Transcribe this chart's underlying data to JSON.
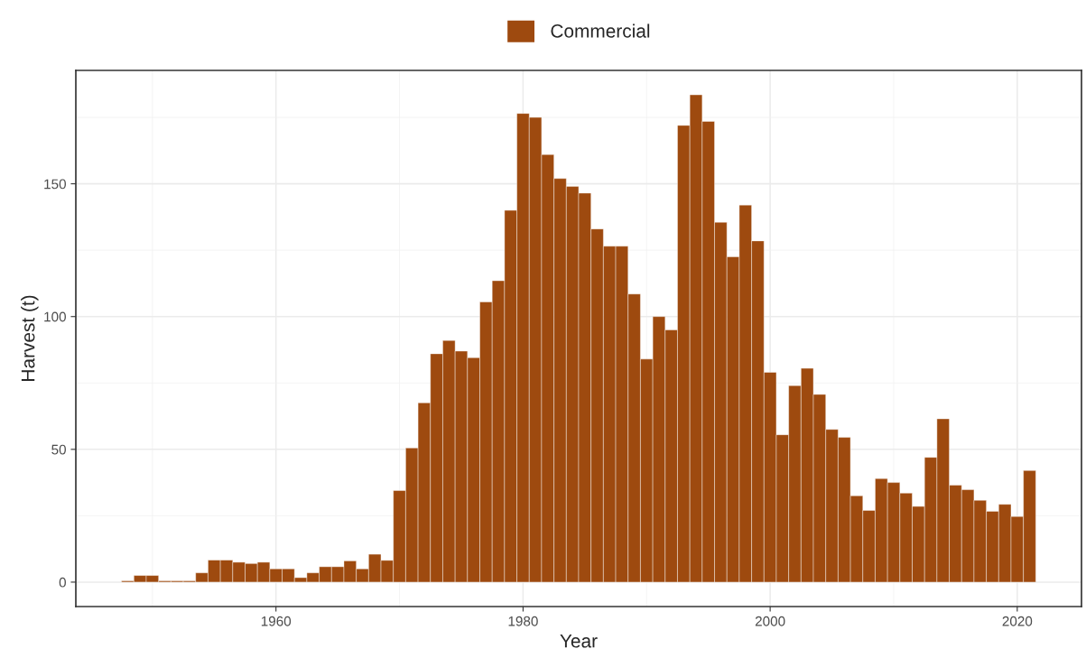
{
  "chart_data": {
    "type": "bar",
    "xlabel": "Year",
    "ylabel": "Harvest (t)",
    "x": [
      1948,
      1949,
      1950,
      1951,
      1952,
      1953,
      1954,
      1955,
      1956,
      1957,
      1958,
      1959,
      1960,
      1961,
      1962,
      1963,
      1964,
      1965,
      1966,
      1967,
      1968,
      1969,
      1970,
      1971,
      1972,
      1973,
      1974,
      1975,
      1976,
      1977,
      1978,
      1979,
      1980,
      1981,
      1982,
      1983,
      1984,
      1985,
      1986,
      1987,
      1988,
      1989,
      1990,
      1991,
      1992,
      1993,
      1994,
      1995,
      1996,
      1997,
      1998,
      1999,
      2000,
      2001,
      2002,
      2003,
      2004,
      2005,
      2006,
      2007,
      2008,
      2009,
      2010,
      2011,
      2012,
      2013,
      2014,
      2015,
      2016,
      2017,
      2018,
      2019,
      2020,
      2021
    ],
    "series": [
      {
        "name": "Commercial",
        "color": "#9e4a0f",
        "values": [
          0.5,
          2.5,
          2.5,
          0.5,
          0.5,
          0.5,
          3.5,
          8.3,
          8.3,
          7.5,
          7,
          7.5,
          5,
          5,
          1.7,
          3.5,
          5.8,
          5.8,
          8,
          5,
          10.5,
          8.2,
          34.5,
          50.5,
          67.5,
          86,
          91,
          87,
          84.5,
          105.5,
          113.5,
          140,
          176.5,
          175,
          161,
          152,
          149,
          146.5,
          133,
          126.5,
          126.5,
          108.5,
          84,
          100,
          95,
          172,
          183.5,
          173.5,
          135.5,
          122.5,
          142,
          128.5,
          79,
          55.5,
          74,
          80.5,
          70.7,
          57.5,
          54.5,
          32.5,
          27,
          39,
          37.5,
          33.5,
          28.5,
          47,
          61.5,
          36.5,
          34.8,
          30.8,
          26.7,
          29.3,
          24.7,
          42
        ]
      }
    ],
    "xlim": [
      1943.8,
      2025.2
    ],
    "xticks": [
      1960,
      1980,
      2000,
      2020
    ],
    "ylim": [
      -9.2,
      192.7
    ],
    "yticks": [
      0,
      50,
      100,
      150
    ],
    "grid": true,
    "legend": "top"
  }
}
